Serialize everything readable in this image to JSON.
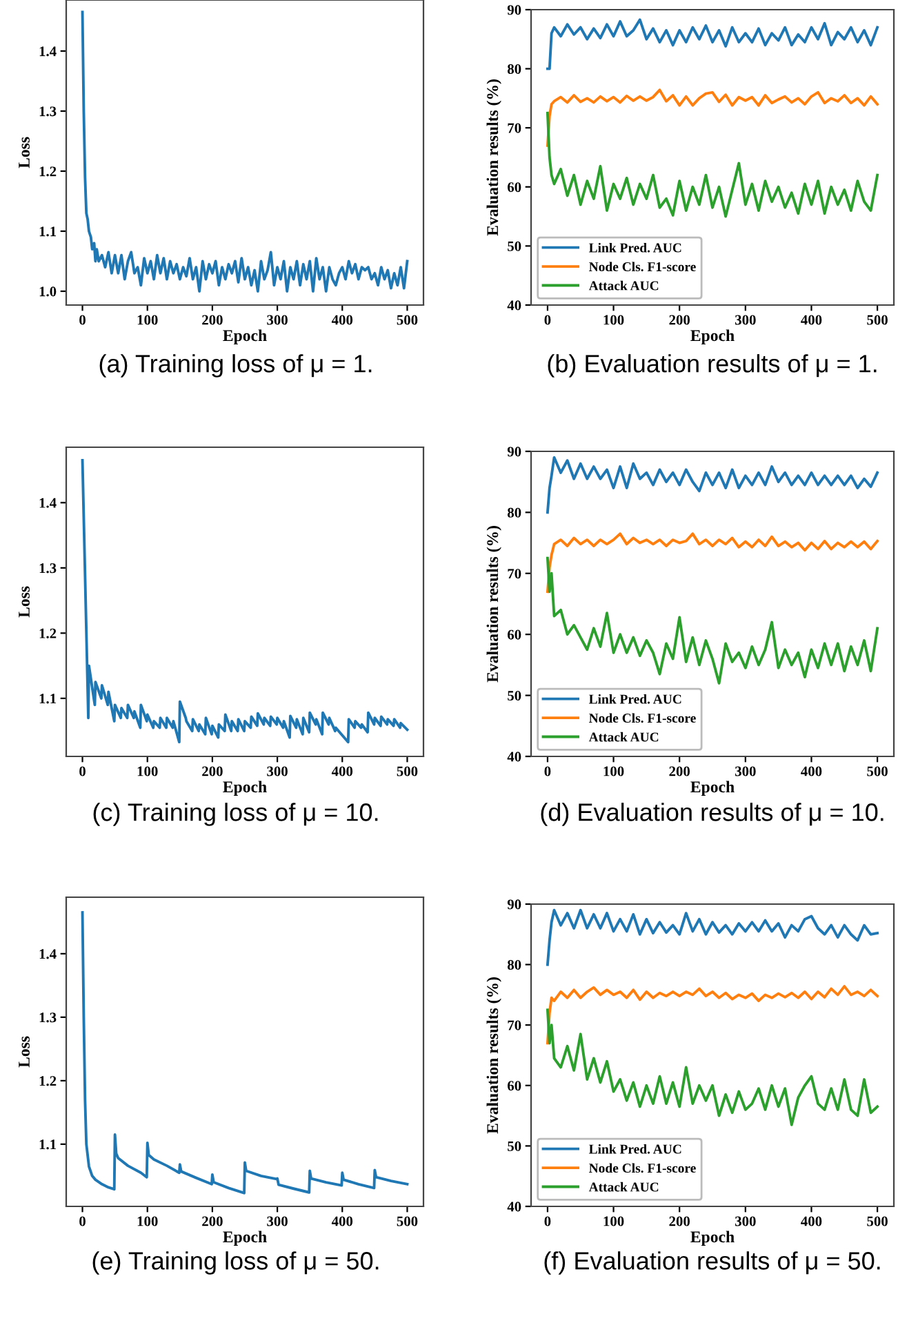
{
  "chart_data": [
    {
      "type": "line",
      "xlabel": "Epoch",
      "ylabel": "Loss",
      "xlim": [
        -25,
        525
      ],
      "xticks": [
        0,
        100,
        200,
        300,
        400,
        500
      ],
      "ylim": [
        0.977,
        1.485
      ],
      "yticks": [
        {
          "value": 1.0,
          "label": "1.0"
        },
        1.1,
        1.2,
        1.3,
        1.4
      ],
      "annotations": [
        "(a) Training loss of μ = 1."
      ],
      "series": [
        {
          "color": "#1f77b4",
          "x": [
            0,
            2,
            4,
            6,
            8,
            10,
            13,
            15,
            18,
            20,
            22,
            25,
            30,
            35,
            40,
            45,
            50,
            55,
            60,
            65,
            70,
            75,
            80,
            85,
            90,
            95,
            100,
            105,
            110,
            115,
            120,
            125,
            130,
            135,
            140,
            145,
            150,
            155,
            160,
            165,
            170,
            175,
            180,
            185,
            190,
            195,
            200,
            205,
            210,
            215,
            220,
            225,
            230,
            235,
            240,
            245,
            250,
            255,
            260,
            265,
            270,
            275,
            280,
            285,
            290,
            295,
            300,
            305,
            310,
            315,
            320,
            325,
            330,
            335,
            340,
            345,
            350,
            355,
            360,
            365,
            370,
            375,
            380,
            385,
            390,
            395,
            400,
            405,
            410,
            415,
            420,
            425,
            430,
            435,
            440,
            445,
            450,
            455,
            460,
            465,
            470,
            475,
            480,
            485,
            490,
            495,
            500
          ],
          "values": [
            1.465,
            1.3,
            1.19,
            1.13,
            1.12,
            1.1,
            1.09,
            1.07,
            1.08,
            1.05,
            1.07,
            1.05,
            1.06,
            1.04,
            1.065,
            1.03,
            1.06,
            1.03,
            1.06,
            1.02,
            1.05,
            1.065,
            1.03,
            1.04,
            1.01,
            1.055,
            1.03,
            1.05,
            1.02,
            1.06,
            1.03,
            1.055,
            1.02,
            1.05,
            1.03,
            1.045,
            1.02,
            1.04,
            1.025,
            1.055,
            1.02,
            1.04,
            1.0,
            1.05,
            1.02,
            1.045,
            1.03,
            1.05,
            1.01,
            1.04,
            1.02,
            1.045,
            1.03,
            1.05,
            1.015,
            1.055,
            1.02,
            1.04,
            1.01,
            1.035,
            1.0,
            1.05,
            1.02,
            1.035,
            1.065,
            1.01,
            1.04,
            1.02,
            1.05,
            1.0,
            1.04,
            1.02,
            1.05,
            1.01,
            1.045,
            1.02,
            1.05,
            1.0,
            1.055,
            1.02,
            1.04,
            1.0,
            1.04,
            1.02,
            1.01,
            1.03,
            1.04,
            1.02,
            1.05,
            1.03,
            1.045,
            1.02,
            1.04,
            1.035,
            1.04,
            1.02,
            1.03,
            1.01,
            1.04,
            1.02,
            1.035,
            1.005,
            1.03,
            1.01,
            1.04,
            1.005,
            1.05
          ]
        }
      ]
    },
    {
      "type": "line",
      "xlabel": "Epoch",
      "ylabel": "Evaluation results (%)",
      "xlim": [
        -25,
        525
      ],
      "xticks": [
        0,
        100,
        200,
        300,
        400,
        500
      ],
      "ylim": [
        40,
        90
      ],
      "yticks": [
        40,
        50,
        60,
        70,
        80,
        90
      ],
      "legend": "bottom left",
      "annotations": [
        "(b) Evaluation results of μ = 1."
      ],
      "x": [
        0,
        3,
        6,
        10,
        20,
        30,
        40,
        50,
        60,
        70,
        80,
        90,
        100,
        110,
        120,
        130,
        140,
        150,
        160,
        170,
        180,
        190,
        200,
        210,
        220,
        230,
        240,
        250,
        260,
        270,
        280,
        290,
        300,
        310,
        320,
        330,
        340,
        350,
        360,
        370,
        380,
        390,
        400,
        410,
        420,
        430,
        440,
        450,
        460,
        470,
        480,
        490,
        500
      ],
      "series": [
        {
          "name": "Link Pred. AUC",
          "color": "#1f77b4",
          "values": [
            80,
            80,
            86,
            87,
            85.5,
            87.5,
            85.8,
            87,
            85,
            86.8,
            85.2,
            87.5,
            85.5,
            88,
            85.5,
            86.5,
            88.3,
            85,
            86.8,
            84.5,
            86.5,
            84,
            86.5,
            84.5,
            87,
            85,
            87.3,
            84.5,
            86.5,
            83.8,
            87,
            84.5,
            86,
            84.5,
            86.8,
            84,
            86,
            84.8,
            87,
            84,
            85.8,
            84.5,
            87,
            85,
            87.7,
            84,
            86.2,
            85,
            87,
            84.5,
            86.5,
            84,
            87
          ]
        },
        {
          "name": "Node Cls. F1-score",
          "color": "#ff7f0e",
          "values": [
            67,
            72,
            74,
            74.5,
            75.2,
            74.3,
            75.5,
            74.4,
            75,
            74.3,
            75.3,
            74.5,
            75.2,
            74.3,
            75.4,
            74.6,
            75.3,
            74.6,
            75.2,
            76.4,
            74.5,
            75.5,
            73.8,
            75.3,
            73.8,
            75,
            75.8,
            76,
            74.4,
            75.6,
            73.8,
            75.2,
            74.6,
            75.2,
            73.8,
            75.5,
            74.2,
            74.8,
            75.3,
            74.3,
            75,
            74,
            75.3,
            76,
            74.2,
            75,
            74.5,
            75.5,
            74.2,
            75,
            73.8,
            75.3,
            74
          ]
        },
        {
          "name": "Attack AUC",
          "color": "#2ca02c",
          "values": [
            72.5,
            65,
            62,
            60.5,
            63,
            58.5,
            62,
            57,
            61,
            58,
            63.5,
            56,
            60.5,
            58,
            61.5,
            57,
            60.5,
            58,
            62,
            56.5,
            58,
            55.2,
            61,
            56,
            60,
            57,
            62,
            56.5,
            60,
            55,
            59.5,
            64,
            57,
            60.5,
            56,
            61,
            57.5,
            60,
            56.5,
            59,
            55.5,
            60.5,
            57,
            61,
            55.5,
            60,
            57,
            59.5,
            56,
            61,
            57.5,
            56,
            62
          ]
        }
      ]
    },
    {
      "type": "line",
      "xlabel": "Epoch",
      "ylabel": "Loss",
      "xlim": [
        -25,
        525
      ],
      "xticks": [
        0,
        100,
        200,
        300,
        400,
        500
      ],
      "ylim": [
        1.011,
        1.485
      ],
      "yticks": [
        1.1,
        1.2,
        1.3,
        1.4
      ],
      "annotations": [
        "(c) Training loss of μ = 10."
      ],
      "series": [
        {
          "color": "#1f77b4",
          "x": [
            0,
            9,
            10,
            19,
            20,
            29,
            30,
            39,
            40,
            49,
            50,
            59,
            60,
            69,
            70,
            79,
            80,
            89,
            90,
            99,
            100,
            109,
            110,
            119,
            120,
            129,
            130,
            139,
            140,
            149,
            150,
            159,
            160,
            169,
            170,
            179,
            180,
            189,
            190,
            199,
            200,
            209,
            210,
            219,
            220,
            229,
            230,
            239,
            240,
            249,
            250,
            259,
            260,
            269,
            270,
            279,
            280,
            289,
            290,
            299,
            300,
            309,
            310,
            319,
            320,
            329,
            330,
            339,
            340,
            349,
            350,
            359,
            360,
            369,
            370,
            379,
            380,
            389,
            390,
            409,
            410,
            419,
            420,
            429,
            430,
            439,
            440,
            449,
            450,
            459,
            460,
            469,
            470,
            479,
            480,
            489,
            490,
            500
          ],
          "values": [
            1.465,
            1.07,
            1.15,
            1.09,
            1.125,
            1.1,
            1.12,
            1.09,
            1.11,
            1.065,
            1.09,
            1.07,
            1.085,
            1.07,
            1.09,
            1.07,
            1.08,
            1.055,
            1.09,
            1.065,
            1.075,
            1.055,
            1.065,
            1.055,
            1.07,
            1.055,
            1.07,
            1.055,
            1.065,
            1.033,
            1.095,
            1.07,
            1.065,
            1.05,
            1.068,
            1.05,
            1.06,
            1.045,
            1.07,
            1.045,
            1.058,
            1.04,
            1.06,
            1.05,
            1.075,
            1.05,
            1.065,
            1.05,
            1.068,
            1.05,
            1.065,
            1.055,
            1.072,
            1.058,
            1.077,
            1.06,
            1.07,
            1.058,
            1.072,
            1.06,
            1.07,
            1.055,
            1.065,
            1.04,
            1.073,
            1.055,
            1.068,
            1.045,
            1.07,
            1.048,
            1.078,
            1.06,
            1.068,
            1.045,
            1.078,
            1.06,
            1.07,
            1.05,
            1.055,
            1.033,
            1.068,
            1.055,
            1.065,
            1.055,
            1.06,
            1.048,
            1.078,
            1.06,
            1.07,
            1.058,
            1.072,
            1.06,
            1.068,
            1.058,
            1.068,
            1.055,
            1.062,
            1.052
          ]
        }
      ]
    },
    {
      "type": "line",
      "xlabel": "Epoch",
      "ylabel": "Evaluation results (%)",
      "xlim": [
        -25,
        525
      ],
      "xticks": [
        0,
        100,
        200,
        300,
        400,
        500
      ],
      "ylim": [
        40,
        90
      ],
      "yticks": [
        40,
        50,
        60,
        70,
        80,
        90
      ],
      "legend": "bottom left",
      "annotations": [
        "(d) Evaluation results of μ = 10."
      ],
      "x": [
        0,
        3,
        6,
        10,
        20,
        30,
        40,
        50,
        60,
        70,
        80,
        90,
        100,
        110,
        120,
        130,
        140,
        150,
        160,
        170,
        180,
        190,
        200,
        210,
        220,
        230,
        240,
        250,
        260,
        270,
        280,
        290,
        300,
        310,
        320,
        330,
        340,
        350,
        360,
        370,
        380,
        390,
        400,
        410,
        420,
        430,
        440,
        450,
        460,
        470,
        480,
        490,
        500
      ],
      "series": [
        {
          "name": "Link Pred. AUC",
          "color": "#1f77b4",
          "values": [
            80,
            84,
            86,
            89,
            86.5,
            88.5,
            85.5,
            88,
            85.5,
            87.5,
            85.5,
            87,
            84,
            87.5,
            84,
            88,
            85.5,
            86.5,
            84.5,
            87,
            85,
            86.5,
            84.5,
            87,
            85,
            83.5,
            86.5,
            84.5,
            86.5,
            84,
            87,
            84,
            86,
            84.5,
            86.5,
            84.5,
            87.5,
            85,
            86.5,
            84.5,
            86,
            84.5,
            86.5,
            84.5,
            86,
            84.5,
            86,
            84.5,
            86,
            84,
            85.5,
            84.2,
            86.5
          ]
        },
        {
          "name": "Node Cls. F1-score",
          "color": "#ff7f0e",
          "values": [
            67,
            71,
            73,
            74.8,
            75.5,
            74.5,
            75.8,
            74.8,
            75.5,
            74.5,
            75.5,
            74.8,
            75.5,
            76.5,
            74.8,
            75.8,
            75,
            75.5,
            74.8,
            75.5,
            74.5,
            75.5,
            75,
            75.3,
            76.5,
            74.8,
            75.5,
            74.5,
            75.5,
            74.8,
            75.8,
            74.3,
            75.2,
            74.3,
            75.5,
            74.5,
            76,
            74.5,
            75.2,
            74.3,
            75,
            73.8,
            75,
            74,
            75.3,
            74,
            75,
            74.3,
            75.2,
            74.3,
            75.2,
            74,
            75.3
          ]
        },
        {
          "name": "Attack AUC",
          "color": "#2ca02c",
          "values": [
            72.5,
            67,
            70,
            63,
            64,
            60,
            61.5,
            59.5,
            57.5,
            61,
            58,
            63.5,
            57,
            60,
            57,
            59.5,
            56.5,
            59,
            57,
            53.5,
            58.5,
            56,
            62.8,
            55.5,
            59.5,
            55,
            59,
            56,
            52,
            58.5,
            55.5,
            57,
            54.5,
            58,
            55,
            57.5,
            62,
            54.5,
            57.5,
            55,
            57,
            53,
            57.5,
            54.5,
            58.5,
            55,
            58.5,
            54,
            58,
            55,
            59,
            54,
            61
          ]
        }
      ]
    },
    {
      "type": "line",
      "xlabel": "Epoch",
      "ylabel": "Loss",
      "xlim": [
        -25,
        525
      ],
      "xticks": [
        0,
        100,
        200,
        300,
        400,
        500
      ],
      "ylim": [
        1.002,
        1.489
      ],
      "yticks": [
        1.1,
        1.2,
        1.3,
        1.4
      ],
      "annotations": [
        "(e) Training loss of μ = 50."
      ],
      "series": [
        {
          "color": "#1f77b4",
          "x": [
            0,
            2,
            4,
            6,
            10,
            15,
            20,
            30,
            40,
            49,
            50,
            52,
            55,
            70,
            90,
            99,
            100,
            102,
            110,
            130,
            149,
            150,
            152,
            175,
            199,
            200,
            202,
            225,
            249,
            250,
            252,
            275,
            299,
            300,
            302,
            325,
            349,
            350,
            352,
            375,
            399,
            400,
            402,
            425,
            449,
            450,
            452,
            475,
            500
          ],
          "values": [
            1.465,
            1.3,
            1.17,
            1.1,
            1.065,
            1.05,
            1.044,
            1.037,
            1.032,
            1.029,
            1.115,
            1.085,
            1.078,
            1.066,
            1.055,
            1.048,
            1.102,
            1.083,
            1.076,
            1.066,
            1.055,
            1.068,
            1.057,
            1.047,
            1.037,
            1.052,
            1.04,
            1.031,
            1.023,
            1.071,
            1.058,
            1.05,
            1.045,
            1.046,
            1.036,
            1.03,
            1.024,
            1.058,
            1.046,
            1.04,
            1.035,
            1.055,
            1.044,
            1.037,
            1.031,
            1.059,
            1.048,
            1.042,
            1.037
          ]
        }
      ]
    },
    {
      "type": "line",
      "xlabel": "Epoch",
      "ylabel": "Evaluation results (%)",
      "xlim": [
        -25,
        525
      ],
      "xticks": [
        0,
        100,
        200,
        300,
        400,
        500
      ],
      "ylim": [
        40,
        90
      ],
      "yticks": [
        40,
        50,
        60,
        70,
        80,
        90
      ],
      "legend": "bottom left",
      "annotations": [
        "(f) Evaluation results of μ = 50."
      ],
      "x": [
        0,
        3,
        6,
        10,
        20,
        30,
        40,
        50,
        60,
        70,
        80,
        90,
        100,
        110,
        120,
        130,
        140,
        150,
        160,
        170,
        180,
        190,
        200,
        210,
        220,
        230,
        240,
        250,
        260,
        270,
        280,
        290,
        300,
        310,
        320,
        330,
        340,
        350,
        360,
        370,
        380,
        390,
        400,
        410,
        420,
        430,
        440,
        450,
        460,
        470,
        480,
        490,
        500
      ],
      "series": [
        {
          "name": "Link Pred. AUC",
          "color": "#1f77b4",
          "values": [
            80,
            84,
            87,
            89,
            86.5,
            88.5,
            86,
            89,
            86,
            88.3,
            86,
            88.5,
            85.5,
            87.5,
            85.5,
            88.3,
            85,
            87.5,
            85.2,
            87,
            85.3,
            86.5,
            85,
            88.5,
            85.5,
            87.5,
            85,
            87,
            85.3,
            86.5,
            85,
            86.8,
            85.5,
            87,
            85.5,
            87.3,
            85.5,
            86.8,
            84.5,
            86.5,
            85.5,
            87.5,
            88,
            86,
            85,
            86.5,
            84.5,
            86.5,
            85,
            84,
            86.5,
            85,
            85.2
          ]
        },
        {
          "name": "Node Cls. F1-score",
          "color": "#ff7f0e",
          "values": [
            67,
            72,
            74.5,
            74,
            75.5,
            74.5,
            75.8,
            74.5,
            75.5,
            76.2,
            75,
            75.8,
            75,
            75.5,
            74.5,
            75.8,
            74.2,
            75.5,
            74.5,
            75.3,
            74.8,
            75.5,
            74.8,
            75.5,
            75,
            76,
            74.8,
            75.5,
            74.5,
            75.3,
            74.3,
            75,
            74.5,
            75.2,
            74,
            75,
            74.5,
            75.2,
            74.6,
            75.3,
            74.5,
            75.5,
            74.3,
            75.5,
            74.6,
            76,
            75,
            76.4,
            75,
            75.5,
            74.8,
            75.8,
            74.8
          ]
        },
        {
          "name": "Attack AUC",
          "color": "#2ca02c",
          "values": [
            72.5,
            67,
            70,
            64.5,
            63,
            66.5,
            62.5,
            68.5,
            61,
            64.5,
            60.5,
            64,
            59,
            61,
            57.5,
            60.5,
            56.5,
            60,
            57,
            61.5,
            57,
            60.5,
            56.5,
            63,
            57,
            60,
            57.5,
            60,
            55,
            58.5,
            55.5,
            59,
            56,
            57,
            59.5,
            56,
            60,
            56.5,
            59.5,
            53.5,
            58,
            60,
            61.5,
            57,
            56,
            59.5,
            56,
            61,
            56,
            55,
            61,
            55.5,
            56.5
          ]
        }
      ]
    }
  ]
}
